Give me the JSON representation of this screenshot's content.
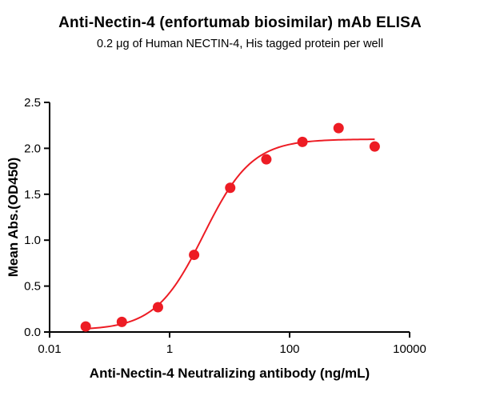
{
  "header": {
    "title": "Anti-Nectin-4 (enfortumab biosimilar) mAb ELISA",
    "subtitle": "0.2 μg of Human NECTIN-4, His tagged protein per well"
  },
  "chart_data": {
    "type": "scatter",
    "title": "Anti-Nectin-4 (enfortumab biosimilar) mAb ELISA",
    "subtitle": "0.2 μg of Human NECTIN-4, His tagged protein per well",
    "xlabel": "Anti-Nectin-4 Neutralizing antibody (ng/mL)",
    "ylabel": "Mean Abs.(OD450)",
    "x_scale": "log",
    "xlim": [
      0.01,
      10000
    ],
    "ylim": [
      0,
      2.5
    ],
    "x": [
      0.04,
      0.16,
      0.64,
      2.56,
      10.24,
      40.96,
      163.84,
      655.36,
      2621.44
    ],
    "y": [
      0.06,
      0.11,
      0.27,
      0.84,
      1.57,
      1.88,
      2.07,
      2.22,
      2.02
    ],
    "x_ticks": [
      {
        "value": 0.01,
        "label": "0.01"
      },
      {
        "value": 1,
        "label": "1"
      },
      {
        "value": 100,
        "label": "100"
      },
      {
        "value": 10000,
        "label": "10000"
      }
    ],
    "y_ticks": [
      {
        "value": 0.0,
        "label": "0.0"
      },
      {
        "value": 0.5,
        "label": "0.5"
      },
      {
        "value": 1.0,
        "label": "1.0"
      },
      {
        "value": 1.5,
        "label": "1.5"
      },
      {
        "value": 2.0,
        "label": "2.0"
      },
      {
        "value": 2.5,
        "label": "2.5"
      }
    ],
    "point_color": "#ed1c24",
    "curve_color": "#ed1c24",
    "axis_color": "#000000",
    "fit": {
      "model": "4PL",
      "bottom": 0.02,
      "top": 2.1,
      "ec50": 3.7,
      "hill": 1.08
    },
    "legend": "none",
    "grid": false
  }
}
